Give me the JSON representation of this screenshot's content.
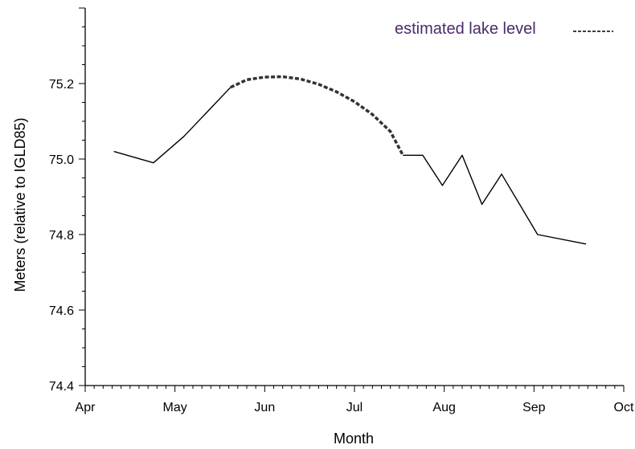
{
  "chart_data": {
    "type": "line",
    "title": "",
    "xlabel": "Month",
    "ylabel": "Meters (relative to IGLD85)",
    "x_ticks": [
      "Apr",
      "May",
      "Jun",
      "Jul",
      "Aug",
      "Sep",
      "Oct"
    ],
    "xlim": [
      0,
      6
    ],
    "ylim": [
      74.4,
      75.4
    ],
    "y_ticks": [
      "74.4",
      "74.6",
      "74.8",
      "75.0",
      "75.2"
    ],
    "y_tick_values": [
      74.4,
      74.6,
      74.8,
      75.0,
      75.2
    ],
    "grid": false,
    "legend_position": "top-right",
    "series": [
      {
        "style": "solid",
        "points": [
          [
            0.32,
            75.02
          ],
          [
            0.76,
            74.99
          ],
          [
            1.1,
            75.06
          ],
          [
            1.62,
            75.19
          ]
        ]
      },
      {
        "name": "estimated lake level",
        "style": "dashed",
        "points": [
          [
            1.62,
            75.19
          ],
          [
            1.8,
            75.21
          ],
          [
            2.0,
            75.217
          ],
          [
            2.2,
            75.218
          ],
          [
            2.4,
            75.212
          ],
          [
            2.6,
            75.198
          ],
          [
            2.8,
            75.178
          ],
          [
            3.0,
            75.152
          ],
          [
            3.2,
            75.118
          ],
          [
            3.4,
            75.073
          ],
          [
            3.54,
            75.01
          ]
        ]
      },
      {
        "style": "solid",
        "points": [
          [
            3.54,
            75.01
          ],
          [
            3.76,
            75.01
          ],
          [
            3.98,
            74.93
          ],
          [
            4.2,
            75.01
          ],
          [
            4.42,
            74.88
          ],
          [
            4.64,
            74.96
          ],
          [
            5.04,
            74.8
          ],
          [
            5.58,
            74.775
          ]
        ]
      }
    ]
  }
}
